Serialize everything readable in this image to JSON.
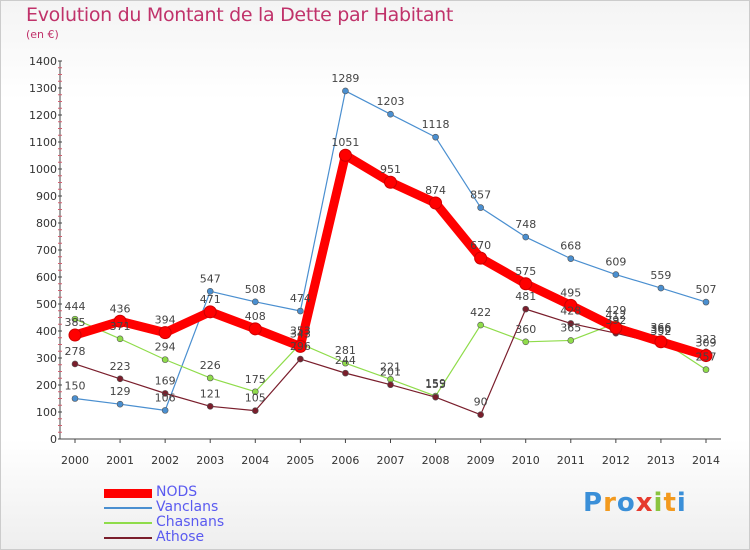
{
  "title": "Evolution du Montant de la Dette par Habitant",
  "subtitle": "(en €)",
  "chart_data": {
    "type": "line",
    "categories": [
      "2000",
      "2001",
      "2002",
      "2003",
      "2004",
      "2005",
      "2006",
      "2007",
      "2008",
      "2009",
      "2010",
      "2011",
      "2012",
      "2013",
      "2014"
    ],
    "ylim": [
      0,
      1400
    ],
    "yticks": [
      0,
      100,
      200,
      300,
      400,
      500,
      600,
      700,
      800,
      900,
      1000,
      1100,
      1200,
      1300,
      1400
    ],
    "grid": false,
    "legend_position": "bottom-left",
    "series": [
      {
        "name": "Vanclans",
        "color": "#4a8fd0",
        "values": [
          150,
          129,
          106,
          547,
          508,
          474,
          1289,
          1203,
          1118,
          857,
          748,
          668,
          609,
          559,
          507
        ]
      },
      {
        "name": "Chasnans",
        "color": "#8fdc4a",
        "values": [
          444,
          371,
          294,
          226,
          175,
          353,
          281,
          221,
          159,
          422,
          360,
          365,
          429,
          366,
          257
        ]
      },
      {
        "name": "Athose",
        "color": "#7a1e2c",
        "values": [
          278,
          223,
          169,
          121,
          105,
          296,
          244,
          201,
          155,
          90,
          481,
          428,
          392,
          352,
          323
        ]
      },
      {
        "name": "NODS",
        "color": "#ff0000",
        "values": [
          385,
          436,
          394,
          471,
          408,
          343,
          1051,
          951,
          874,
          670,
          575,
          495,
          412,
          360,
          309
        ]
      }
    ],
    "legend_order": [
      "NODS",
      "Vanclans",
      "Chasnans",
      "Athose"
    ]
  },
  "logo": {
    "text": "Proxiti",
    "colors": [
      "#3a8fd8",
      "#f39a1e",
      "#3a8fd8",
      "#e63b2e",
      "#8ac43f",
      "#f39a1e",
      "#3a8fd8"
    ]
  }
}
